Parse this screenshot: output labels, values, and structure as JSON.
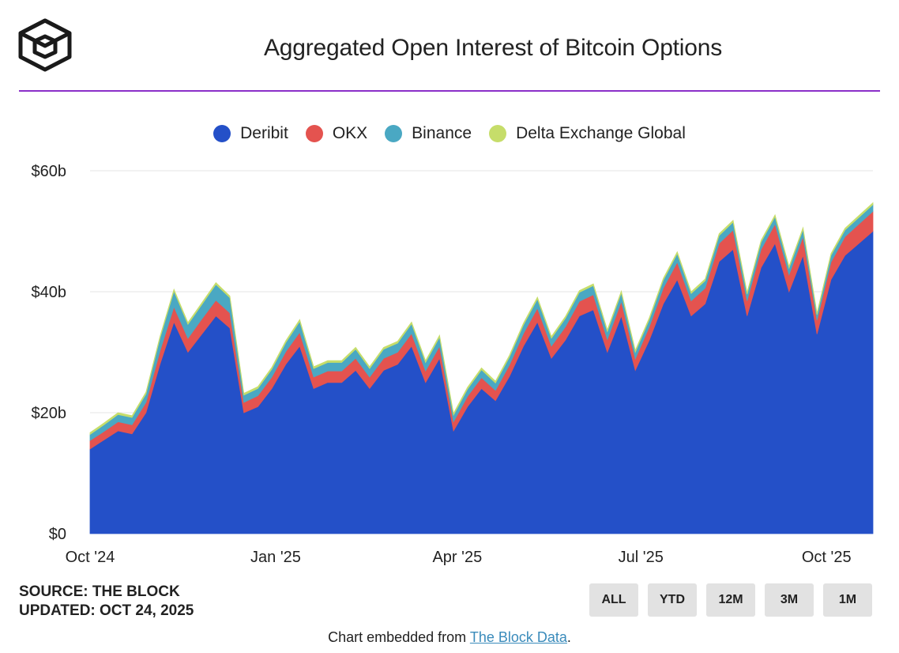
{
  "header": {
    "logo": "the-block-cube-logo",
    "title": "Aggregated Open Interest of Bitcoin Options"
  },
  "colors": {
    "accent": "#8b2fc9",
    "deribit": "#2450c8",
    "okx": "#e4534f",
    "binance": "#4aa8c3",
    "delta": "#c6dd6a"
  },
  "chart_data": {
    "type": "area",
    "stacked": true,
    "title": "Aggregated Open Interest of Bitcoin Options",
    "ylabel": "",
    "ylim": [
      0,
      60
    ],
    "y_unit": "billion USD",
    "y_ticks": [
      "$0",
      "$20b",
      "$40b",
      "$60b"
    ],
    "x_ticks": [
      "Oct '24",
      "Jan '25",
      "Apr '25",
      "Jul '25",
      "Oct '25"
    ],
    "legend_position": "top-center",
    "x": [
      "Oct 01 '24",
      "Oct 15 '24",
      "Oct 29 '24",
      "Nov 05 '24",
      "Nov 12 '24",
      "Nov 20 '24",
      "Nov 26 '24",
      "Dec 03 '24",
      "Dec 10 '24",
      "Dec 17 '24",
      "Dec 24 '24",
      "Dec 27 '24",
      "Dec 28 '24",
      "Jan 07 '25",
      "Jan 14 '25",
      "Jan 21 '25",
      "Jan 24 '25",
      "Jan 31 '25",
      "Feb 04 '25",
      "Feb 14 '25",
      "Feb 21 '25",
      "Feb 28 '25",
      "Mar 07 '25",
      "Mar 14 '25",
      "Mar 20 '25",
      "Mar 28 '25",
      "Mar 29 '25",
      "Apr 08 '25",
      "Apr 18 '25",
      "Apr 24 '25",
      "Apr 26 '25",
      "May 06 '25",
      "May 16 '25",
      "May 23 '25",
      "May 30 '25",
      "Jun 06 '25",
      "Jun 13 '25",
      "Jun 20 '25",
      "Jun 27 '25",
      "Jun 28 '25",
      "Jul 10 '25",
      "Jul 18 '25",
      "Jul 25 '25",
      "Jul 26 '25",
      "Aug 08 '25",
      "Aug 14 '25",
      "Aug 22 '25",
      "Aug 29 '25",
      "Aug 30 '25",
      "Sep 10 '25",
      "Sep 19 '25",
      "Sep 26 '25",
      "Sep 27 '25",
      "Oct 06 '25",
      "Oct 12 '25",
      "Oct 17 '25",
      "Oct 24 '25"
    ],
    "series": [
      {
        "name": "Deribit",
        "values": [
          14,
          15.5,
          17,
          16.5,
          20,
          28,
          35,
          30,
          33,
          36,
          34,
          20,
          21,
          24,
          28,
          31,
          24,
          25,
          25,
          27,
          24,
          27,
          28,
          31,
          25,
          29,
          17,
          21,
          24,
          22,
          26,
          31,
          35,
          29,
          32,
          36,
          37,
          30,
          36,
          27,
          32,
          38,
          42,
          36,
          38,
          45,
          47,
          36,
          44,
          48,
          40,
          46,
          33,
          42,
          46,
          48,
          50
        ]
      },
      {
        "name": "OKX",
        "values": [
          1.4,
          1.4,
          1.5,
          1.5,
          1.7,
          2.2,
          2.5,
          2.3,
          2.5,
          2.6,
          2.5,
          1.7,
          1.8,
          1.9,
          2.1,
          2.3,
          1.9,
          1.9,
          1.9,
          2,
          1.9,
          2,
          2,
          2.1,
          1.9,
          2,
          1.5,
          1.7,
          1.8,
          1.7,
          1.9,
          2.1,
          2.3,
          2,
          2.2,
          2.4,
          2.5,
          2.1,
          2.4,
          1.9,
          2.2,
          2.6,
          2.9,
          2.5,
          2.6,
          3,
          3.2,
          2.5,
          3,
          3.2,
          2.8,
          3.1,
          2.3,
          2.9,
          3.1,
          3.2,
          3.3
        ]
      },
      {
        "name": "Binance",
        "values": [
          1,
          1.1,
          1.2,
          1.2,
          1.4,
          2.1,
          2.6,
          2.3,
          2.4,
          2.6,
          2.5,
          1.2,
          1.2,
          1.3,
          1.5,
          1.8,
          1.4,
          1.4,
          1.4,
          1.5,
          1.4,
          1.5,
          1.5,
          1.6,
          1.4,
          1.5,
          1.1,
          1.2,
          1.3,
          1.2,
          1.3,
          1.4,
          1.5,
          1.3,
          1.4,
          1.5,
          1.5,
          1.3,
          1.4,
          1.1,
          1.2,
          1.3,
          1.4,
          1.2,
          1.2,
          1.3,
          1.3,
          1.1,
          1.2,
          1.2,
          1.1,
          1.2,
          0.9,
          1.1,
          1.1,
          1.1,
          1.1
        ]
      },
      {
        "name": "Delta Exchange Global",
        "values": [
          0.3,
          0.3,
          0.3,
          0.3,
          0.3,
          0.3,
          0.3,
          0.3,
          0.3,
          0.3,
          0.3,
          0.3,
          0.3,
          0.3,
          0.3,
          0.3,
          0.3,
          0.3,
          0.3,
          0.3,
          0.3,
          0.3,
          0.3,
          0.3,
          0.3,
          0.3,
          0.3,
          0.3,
          0.3,
          0.3,
          0.3,
          0.3,
          0.3,
          0.3,
          0.3,
          0.3,
          0.3,
          0.3,
          0.3,
          0.3,
          0.3,
          0.3,
          0.3,
          0.3,
          0.3,
          0.3,
          0.3,
          0.3,
          0.3,
          0.3,
          0.3,
          0.3,
          0.3,
          0.3,
          0.3,
          0.3,
          0.3
        ]
      }
    ]
  },
  "footer": {
    "source": "SOURCE: THE BLOCK",
    "updated": "UPDATED: OCT 24, 2025",
    "ranges": [
      "ALL",
      "YTD",
      "12M",
      "3M",
      "1M"
    ],
    "embed_text": "Chart embedded from ",
    "embed_link": "The Block Data",
    "embed_suffix": "."
  }
}
